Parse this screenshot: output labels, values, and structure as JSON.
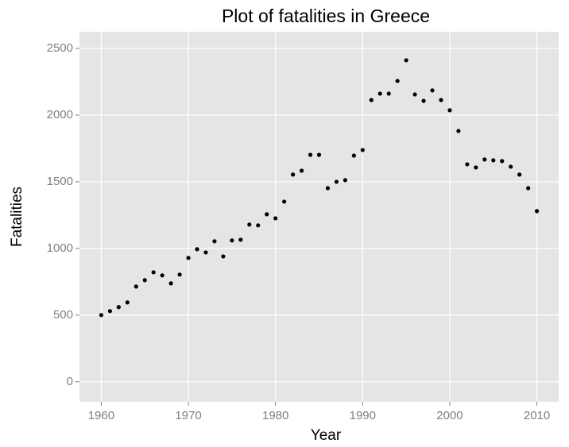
{
  "chart_data": {
    "type": "scatter",
    "title": "Plot of fatalities in Greece",
    "x_label": "Year",
    "y_label": "Fatalities",
    "x": [
      1960,
      1961,
      1962,
      1963,
      1964,
      1965,
      1966,
      1967,
      1968,
      1969,
      1970,
      1971,
      1972,
      1973,
      1974,
      1975,
      1976,
      1977,
      1978,
      1979,
      1980,
      1981,
      1982,
      1983,
      1984,
      1985,
      1986,
      1987,
      1988,
      1989,
      1990,
      1991,
      1992,
      1993,
      1994,
      1995,
      1996,
      1997,
      1998,
      1999,
      2000,
      2001,
      2002,
      2003,
      2004,
      2005,
      2006,
      2007,
      2008,
      2009,
      2010
    ],
    "values": [
      500,
      530,
      560,
      595,
      714,
      762,
      821,
      798,
      738,
      804,
      929,
      994,
      970,
      1054,
      940,
      1060,
      1065,
      1179,
      1173,
      1256,
      1226,
      1351,
      1554,
      1583,
      1702,
      1702,
      1452,
      1500,
      1512,
      1696,
      1738,
      2113,
      2161,
      2161,
      2256,
      2411,
      2155,
      2107,
      2185,
      2113,
      2036,
      1881,
      1631,
      1607,
      1667,
      1661,
      1655,
      1613,
      1554,
      1452,
      1280
    ],
    "color": "#000000",
    "xlim": [
      1957.5,
      2012.5
    ],
    "xticks": [
      1960,
      1970,
      1980,
      1990,
      2000,
      2010
    ],
    "ylim": [
      -150,
      2625
    ],
    "yticks": [
      0,
      500,
      1000,
      1500,
      2000,
      2500
    ],
    "grid": true
  }
}
